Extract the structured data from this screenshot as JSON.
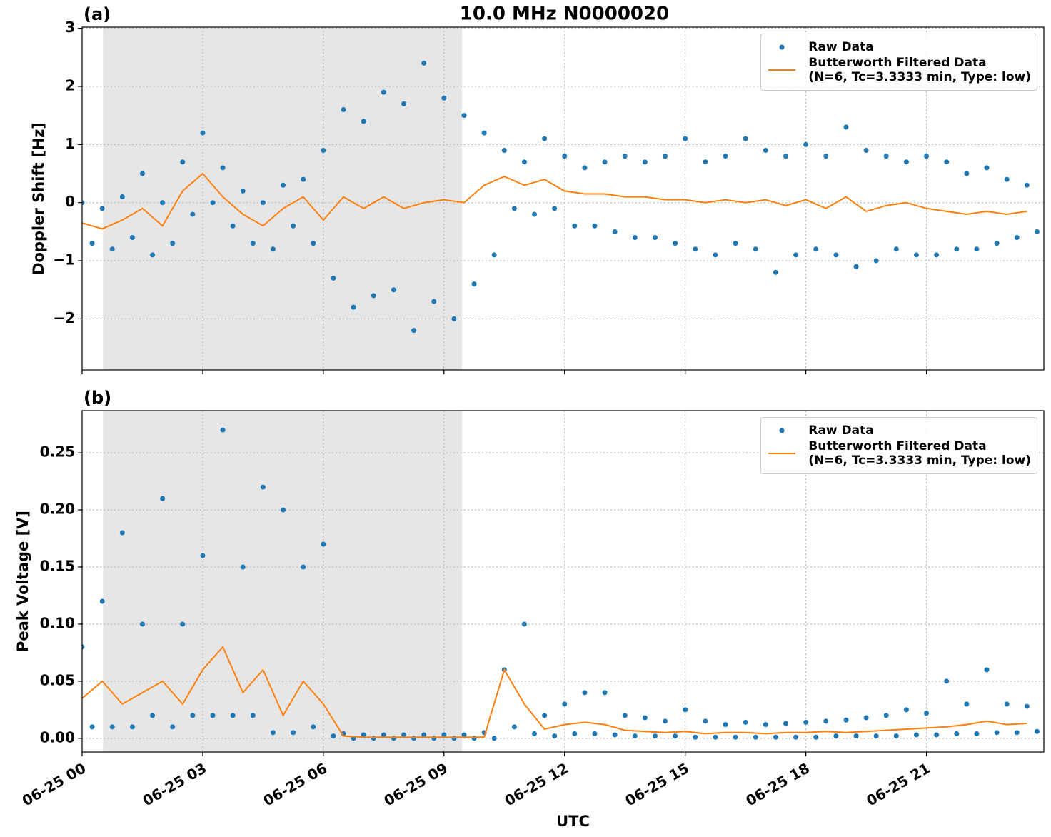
{
  "chart_data": [
    {
      "type": "line",
      "panel_label": "(a)",
      "title": "10.0 MHz N0000020",
      "ylabel": "Doppler Shift [Hz]",
      "xlim": [
        0,
        23.92
      ],
      "ylim": [
        -2.88,
        3.02
      ],
      "xticks": [
        0,
        3,
        6,
        9,
        12,
        15,
        18,
        21
      ],
      "xtick_labels": false,
      "yticks": [
        {
          "value": -2,
          "label": "−2"
        },
        {
          "value": -1,
          "label": "−1"
        },
        0,
        1,
        2,
        3
      ],
      "grid": true,
      "legend": "upper right",
      "shaded_span": [
        0.52,
        9.45
      ],
      "shade_color": "#e6e6e6",
      "series": [
        {
          "name": "Raw Data",
          "kind": "points",
          "color": "#1f77b4",
          "x": [
            0,
            0.25,
            0.5,
            0.75,
            1,
            1.25,
            1.5,
            1.75,
            2,
            2.25,
            2.5,
            2.75,
            3,
            3.25,
            3.5,
            3.75,
            4,
            4.25,
            4.5,
            4.75,
            5,
            5.25,
            5.5,
            5.75,
            6,
            6.25,
            6.5,
            6.75,
            7,
            7.25,
            7.5,
            7.75,
            8,
            8.25,
            8.5,
            8.75,
            9,
            9.25,
            9.5,
            9.75,
            10,
            10.25,
            10.5,
            10.75,
            11,
            11.25,
            11.5,
            11.75,
            12,
            12.25,
            12.5,
            12.75,
            13,
            13.25,
            13.5,
            13.75,
            14,
            14.25,
            14.5,
            14.75,
            15,
            15.25,
            15.5,
            15.75,
            16,
            16.25,
            16.5,
            16.75,
            17,
            17.25,
            17.5,
            17.75,
            18,
            18.25,
            18.5,
            18.75,
            19,
            19.25,
            19.5,
            19.75,
            20,
            20.25,
            20.5,
            20.75,
            21,
            21.25,
            21.5,
            21.75,
            22,
            22.25,
            22.5,
            22.75,
            23,
            23.25,
            23.5,
            23.75
          ],
          "values": [
            0.0,
            -0.7,
            -0.1,
            -0.8,
            0.1,
            -0.6,
            0.5,
            -0.9,
            0.0,
            -0.7,
            0.7,
            -0.2,
            1.2,
            0.0,
            0.6,
            -0.4,
            0.2,
            -0.7,
            0.0,
            -0.8,
            0.3,
            -0.4,
            0.4,
            -0.7,
            0.9,
            -1.3,
            1.6,
            -1.8,
            1.4,
            -1.6,
            1.9,
            -1.5,
            1.7,
            -2.2,
            2.4,
            -1.7,
            1.8,
            -2.0,
            1.5,
            -1.4,
            1.2,
            -0.9,
            0.9,
            -0.1,
            0.7,
            -0.2,
            1.1,
            -0.1,
            0.8,
            -0.4,
            0.6,
            -0.4,
            0.7,
            -0.5,
            0.8,
            -0.6,
            0.7,
            -0.6,
            0.8,
            -0.7,
            1.1,
            -0.8,
            0.7,
            -0.9,
            0.8,
            -0.7,
            1.1,
            -0.8,
            0.9,
            -1.2,
            0.8,
            -0.9,
            1.0,
            -0.8,
            0.8,
            -0.9,
            1.3,
            -1.1,
            0.9,
            -1.0,
            0.8,
            -0.8,
            0.7,
            -0.9,
            0.8,
            -0.9,
            0.7,
            -0.8,
            0.5,
            -0.8,
            0.6,
            -0.7,
            0.4,
            -0.6,
            0.3,
            -0.5
          ]
        },
        {
          "name": "Butterworth Filtered Data\n(N=6, Tc=3.3333 min, Type: low)",
          "kind": "line",
          "color": "#ff7f0e",
          "x": [
            0,
            0.5,
            1,
            1.5,
            2,
            2.5,
            3,
            3.5,
            4,
            4.5,
            5,
            5.5,
            6,
            6.5,
            7,
            7.5,
            8,
            8.5,
            9,
            9.5,
            10,
            10.5,
            11,
            11.5,
            12,
            12.5,
            13,
            13.5,
            14,
            14.5,
            15,
            15.5,
            16,
            16.5,
            17,
            17.5,
            18,
            18.5,
            19,
            19.5,
            20,
            20.5,
            21,
            21.5,
            22,
            22.5,
            23,
            23.5
          ],
          "values": [
            -0.35,
            -0.45,
            -0.3,
            -0.1,
            -0.4,
            0.2,
            0.5,
            0.1,
            -0.2,
            -0.4,
            -0.1,
            0.1,
            -0.3,
            0.1,
            -0.1,
            0.1,
            -0.1,
            0.0,
            0.05,
            0.0,
            0.3,
            0.45,
            0.3,
            0.4,
            0.2,
            0.15,
            0.15,
            0.1,
            0.1,
            0.05,
            0.05,
            0.0,
            0.05,
            0.0,
            0.05,
            -0.05,
            0.05,
            -0.1,
            0.1,
            -0.15,
            -0.05,
            0.0,
            -0.1,
            -0.15,
            -0.2,
            -0.15,
            -0.2,
            -0.15
          ]
        }
      ]
    },
    {
      "type": "line",
      "panel_label": "(b)",
      "ylabel": "Peak Voltage [V]",
      "xlabel": "UTC",
      "xlim": [
        0,
        23.92
      ],
      "ylim": [
        -0.012,
        0.287
      ],
      "xticks": [
        {
          "value": 0,
          "label": "06-25 00"
        },
        {
          "value": 3,
          "label": "06-25 03"
        },
        {
          "value": 6,
          "label": "06-25 06"
        },
        {
          "value": 9,
          "label": "06-25 09"
        },
        {
          "value": 12,
          "label": "06-25 12"
        },
        {
          "value": 15,
          "label": "06-25 15"
        },
        {
          "value": 18,
          "label": "06-25 18"
        },
        {
          "value": 21,
          "label": "06-25 21"
        }
      ],
      "xtick_labels": true,
      "yticks": [
        {
          "value": 0,
          "label": "0.00"
        },
        {
          "value": 0.05,
          "label": "0.05"
        },
        {
          "value": 0.1,
          "label": "0.10"
        },
        {
          "value": 0.15,
          "label": "0.15"
        },
        {
          "value": 0.2,
          "label": "0.20"
        },
        {
          "value": 0.25,
          "label": "0.25"
        }
      ],
      "grid": true,
      "legend": "upper right",
      "shaded_span": [
        0.52,
        9.45
      ],
      "shade_color": "#e6e6e6",
      "series": [
        {
          "name": "Raw Data",
          "kind": "points",
          "color": "#1f77b4",
          "x": [
            0,
            0.25,
            0.5,
            0.75,
            1,
            1.25,
            1.5,
            1.75,
            2,
            2.25,
            2.5,
            2.75,
            3,
            3.25,
            3.5,
            3.75,
            4,
            4.25,
            4.5,
            4.75,
            5,
            5.25,
            5.5,
            5.75,
            6,
            6.25,
            6.5,
            6.75,
            7,
            7.25,
            7.5,
            7.75,
            8,
            8.25,
            8.5,
            8.75,
            9,
            9.25,
            9.5,
            9.75,
            10,
            10.25,
            10.5,
            10.75,
            11,
            11.25,
            11.5,
            11.75,
            12,
            12.25,
            12.5,
            12.75,
            13,
            13.25,
            13.5,
            13.75,
            14,
            14.25,
            14.5,
            14.75,
            15,
            15.25,
            15.5,
            15.75,
            16,
            16.25,
            16.5,
            16.75,
            17,
            17.25,
            17.5,
            17.75,
            18,
            18.25,
            18.5,
            18.75,
            19,
            19.25,
            19.5,
            19.75,
            20,
            20.25,
            20.5,
            20.75,
            21,
            21.25,
            21.5,
            21.75,
            22,
            22.25,
            22.5,
            22.75,
            23,
            23.25,
            23.5,
            23.75
          ],
          "values": [
            0.08,
            0.01,
            0.12,
            0.01,
            0.18,
            0.01,
            0.1,
            0.02,
            0.21,
            0.01,
            0.1,
            0.02,
            0.16,
            0.02,
            0.27,
            0.02,
            0.15,
            0.02,
            0.22,
            0.005,
            0.2,
            0.005,
            0.15,
            0.01,
            0.17,
            0.002,
            0.004,
            0.0,
            0.003,
            0.0,
            0.003,
            0.0,
            0.003,
            0.0,
            0.003,
            0.0,
            0.003,
            0.0,
            0.003,
            0.0,
            0.005,
            0.0,
            0.06,
            0.01,
            0.1,
            0.004,
            0.02,
            0.002,
            0.03,
            0.004,
            0.04,
            0.004,
            0.04,
            0.003,
            0.02,
            0.002,
            0.018,
            0.002,
            0.015,
            0.002,
            0.025,
            0.001,
            0.015,
            0.001,
            0.012,
            0.001,
            0.014,
            0.001,
            0.012,
            0.001,
            0.013,
            0.001,
            0.014,
            0.001,
            0.015,
            0.002,
            0.016,
            0.002,
            0.018,
            0.002,
            0.02,
            0.002,
            0.025,
            0.003,
            0.022,
            0.003,
            0.05,
            0.004,
            0.03,
            0.004,
            0.06,
            0.005,
            0.03,
            0.005,
            0.028,
            0.006
          ]
        },
        {
          "name": "Butterworth Filtered Data\n(N=6, Tc=3.3333 min, Type: low)",
          "kind": "line",
          "color": "#ff7f0e",
          "x": [
            0,
            0.5,
            1,
            1.5,
            2,
            2.5,
            3,
            3.5,
            4,
            4.5,
            5,
            5.5,
            6,
            6.5,
            7,
            7.5,
            8,
            8.5,
            9,
            9.5,
            10,
            10.5,
            11,
            11.5,
            12,
            12.5,
            13,
            13.5,
            14,
            14.5,
            15,
            15.5,
            16,
            16.5,
            17,
            17.5,
            18,
            18.5,
            19,
            19.5,
            20,
            20.5,
            21,
            21.5,
            22,
            22.5,
            23,
            23.5
          ],
          "values": [
            0.035,
            0.05,
            0.03,
            0.04,
            0.05,
            0.03,
            0.06,
            0.08,
            0.04,
            0.06,
            0.02,
            0.05,
            0.03,
            0.002,
            0.001,
            0.001,
            0.001,
            0.001,
            0.001,
            0.001,
            0.001,
            0.06,
            0.03,
            0.008,
            0.012,
            0.014,
            0.012,
            0.007,
            0.006,
            0.005,
            0.006,
            0.004,
            0.005,
            0.005,
            0.004,
            0.005,
            0.005,
            0.006,
            0.005,
            0.006,
            0.007,
            0.008,
            0.009,
            0.01,
            0.012,
            0.015,
            0.012,
            0.013
          ]
        }
      ]
    }
  ]
}
